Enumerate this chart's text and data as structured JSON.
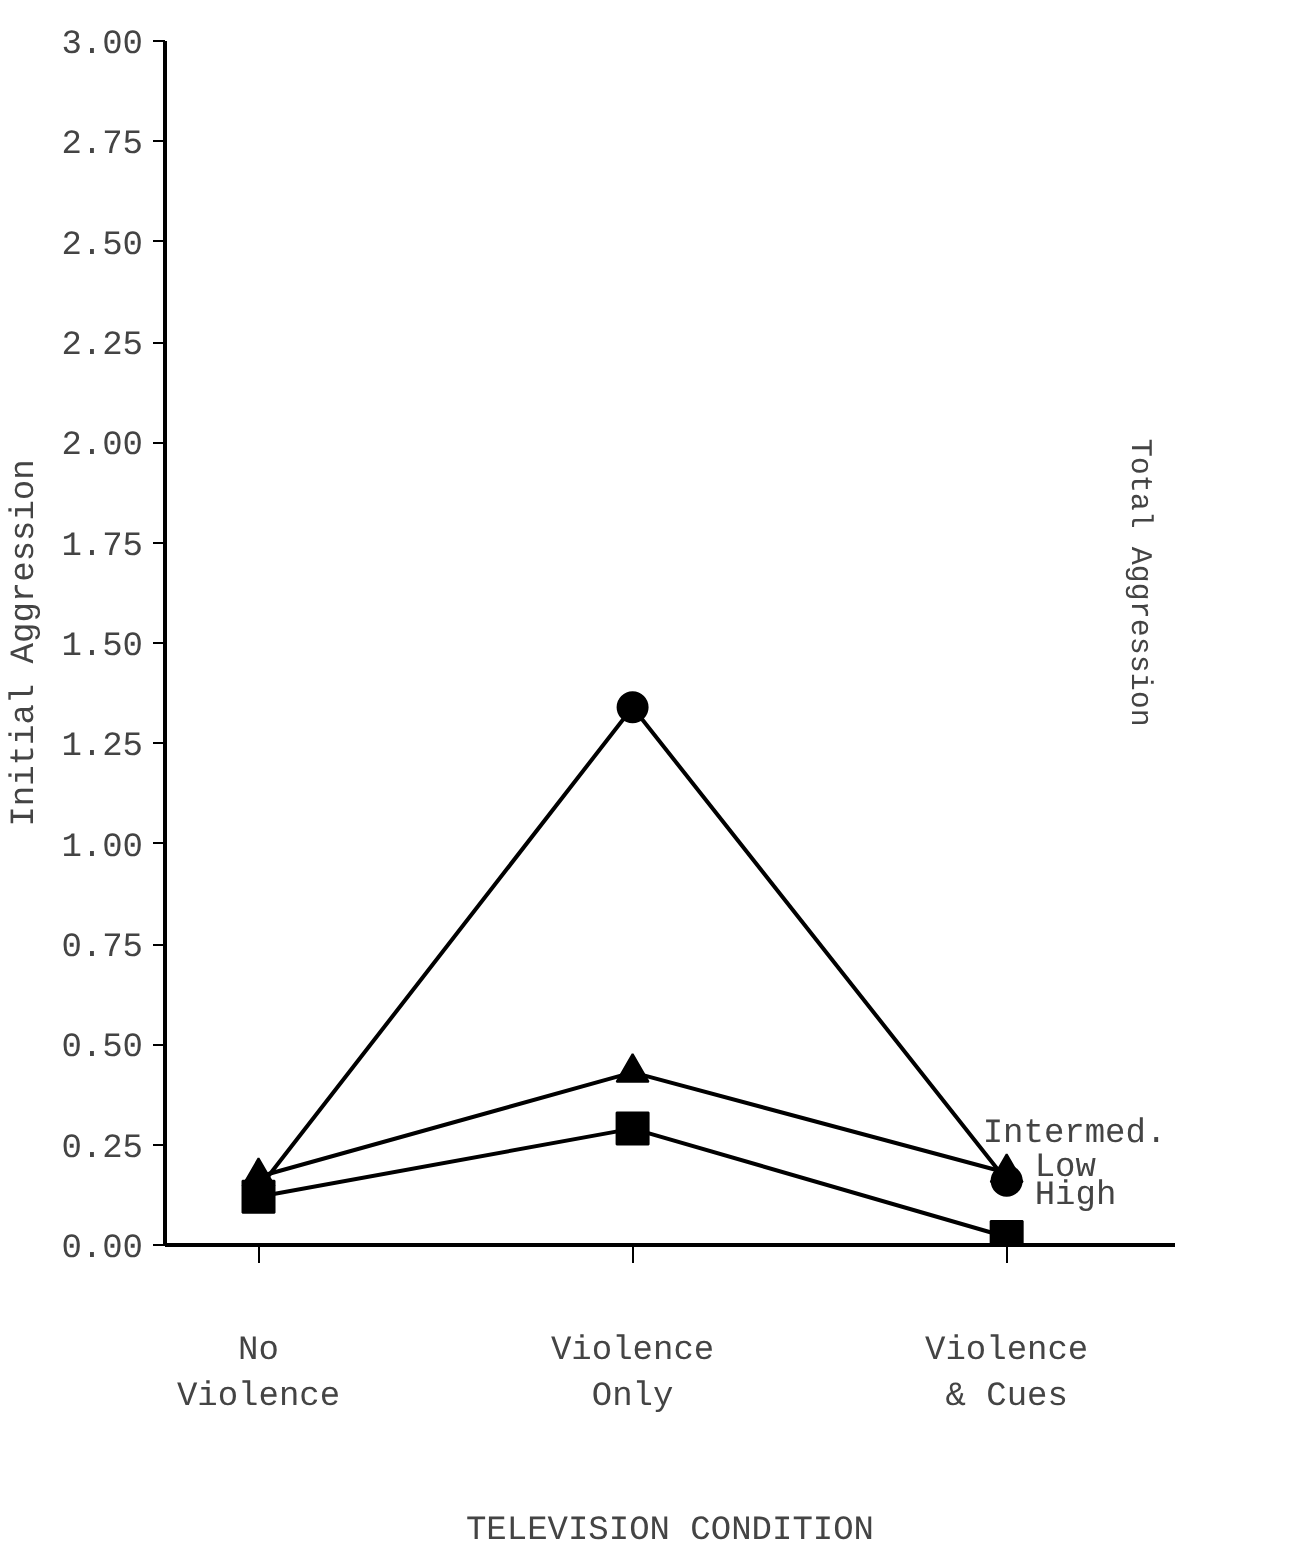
{
  "chart_data": {
    "type": "line",
    "xlabel": "TELEVISION CONDITION",
    "ylabel": "Initial Aggression",
    "categories": [
      "No\nViolence",
      "Violence\nOnly",
      "Violence\n& Cues"
    ],
    "series": [
      {
        "name": "Intermed.",
        "color": "#000000",
        "marker": "triangle",
        "values": [
          0.17,
          0.43,
          0.18
        ]
      },
      {
        "name": "Low",
        "color": "#000000",
        "marker": "circle",
        "values": [
          0.14,
          1.34,
          0.16
        ]
      },
      {
        "name": "High",
        "color": "#000000",
        "marker": "square",
        "values": [
          0.12,
          0.29,
          0.02
        ]
      }
    ],
    "ylim": [
      0,
      3
    ],
    "yticks": [
      {
        "value": 0,
        "label": "0.00"
      },
      {
        "value": 0.25,
        "label": "0.25"
      },
      {
        "value": 0.5,
        "label": "0.50"
      },
      {
        "value": 0.75,
        "label": "0.75"
      },
      {
        "value": 1,
        "label": "1.00"
      },
      {
        "value": 1.25,
        "label": "1.25"
      },
      {
        "value": 1.5,
        "label": "1.50"
      },
      {
        "value": 1.75,
        "label": "1.75"
      },
      {
        "value": 2,
        "label": "2.00"
      },
      {
        "value": 2.25,
        "label": "2.25"
      },
      {
        "value": 2.5,
        "label": "2.50"
      },
      {
        "value": 2.75,
        "label": "2.75"
      },
      {
        "value": 3,
        "label": "3.00"
      }
    ],
    "grid": false,
    "annotations": [
      "Total Aggression"
    ]
  }
}
